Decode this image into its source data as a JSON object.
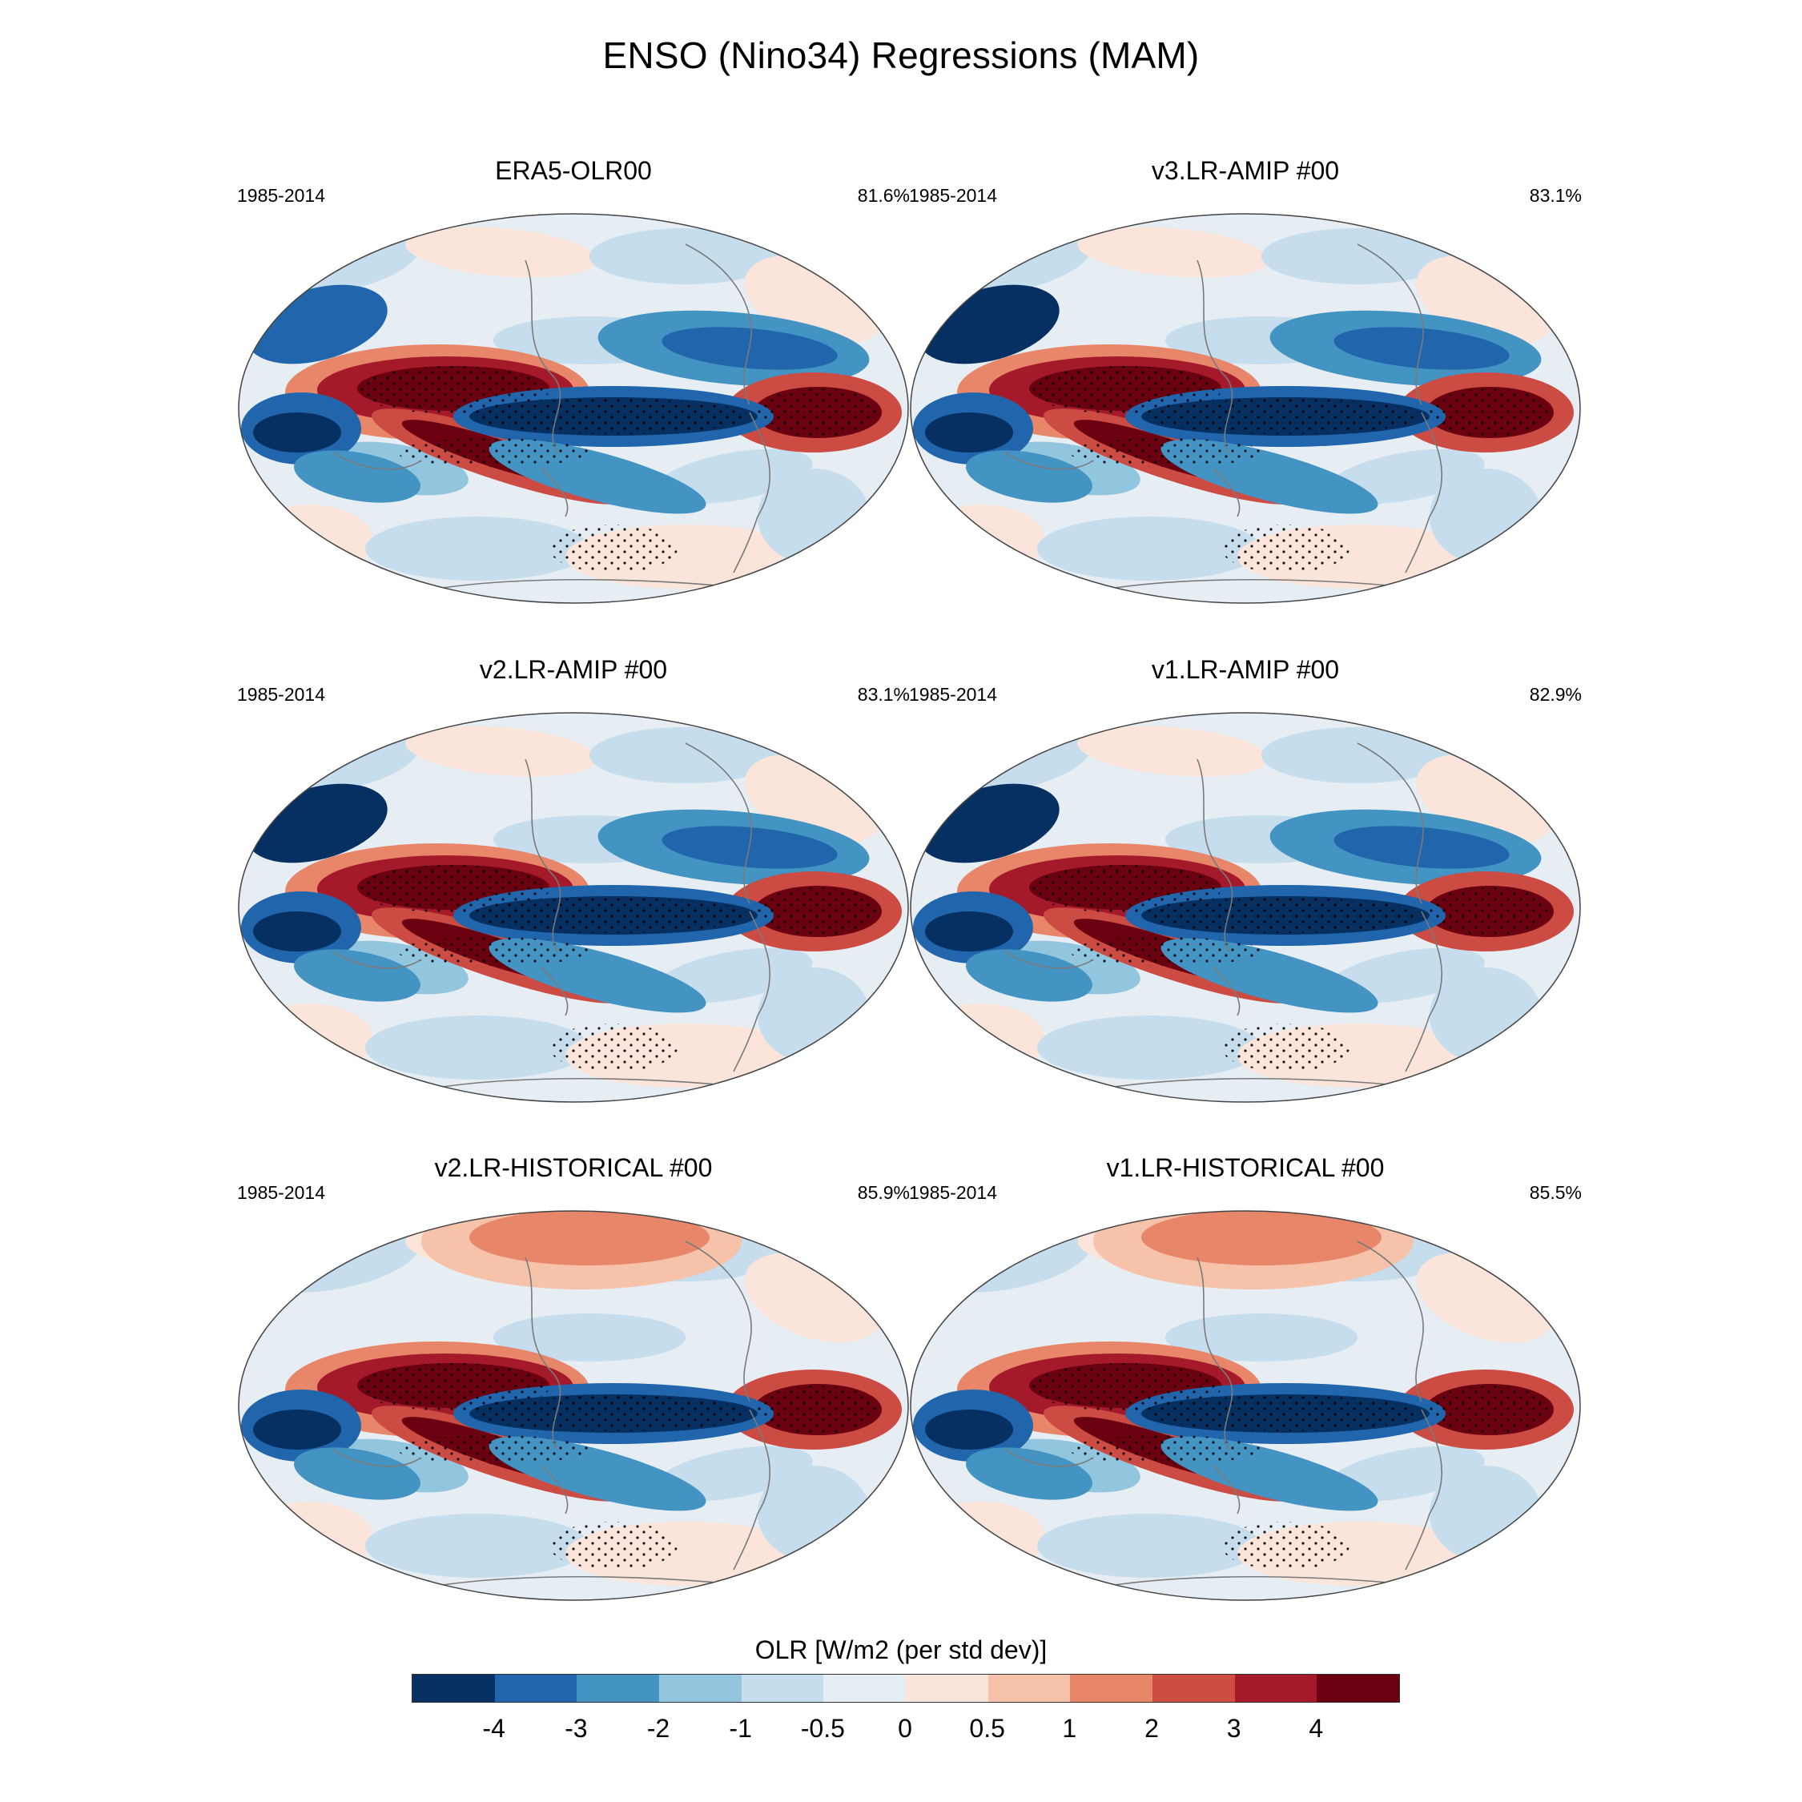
{
  "title": "ENSO (Nino34) Regressions (MAM)",
  "panels": [
    {
      "name": "ERA5-OLR00",
      "years": "1985-2014",
      "percent": "81.6%",
      "variant": "obs"
    },
    {
      "name": "v3.LR-AMIP  #00",
      "years": "1985-2014",
      "percent": "83.1%",
      "variant": "amip"
    },
    {
      "name": "v2.LR-AMIP  #00",
      "years": "1985-2014",
      "percent": "83.1%",
      "variant": "amip"
    },
    {
      "name": "v1.LR-AMIP  #00",
      "years": "1985-2014",
      "percent": "82.9%",
      "variant": "amip"
    },
    {
      "name": "v2.LR-HISTORICAL  #00",
      "years": "1985-2014",
      "percent": "85.9%",
      "variant": "hist"
    },
    {
      "name": "v1.LR-HISTORICAL  #00",
      "years": "1985-2014",
      "percent": "85.5%",
      "variant": "hist"
    }
  ],
  "colorbar": {
    "title": "OLR [W/m2 (per std dev)]",
    "levels": [
      "-4",
      "-3",
      "-2",
      "-1",
      "-0.5",
      "0",
      "0.5",
      "1",
      "2",
      "3",
      "4"
    ],
    "colors": [
      "#053061",
      "#2166ac",
      "#4393c3",
      "#92c5de",
      "#c5ddec",
      "#e6eef4",
      "#fbe5db",
      "#f6c3aa",
      "#e8866a",
      "#cc4c44",
      "#a51a2a",
      "#6a0010"
    ]
  }
}
